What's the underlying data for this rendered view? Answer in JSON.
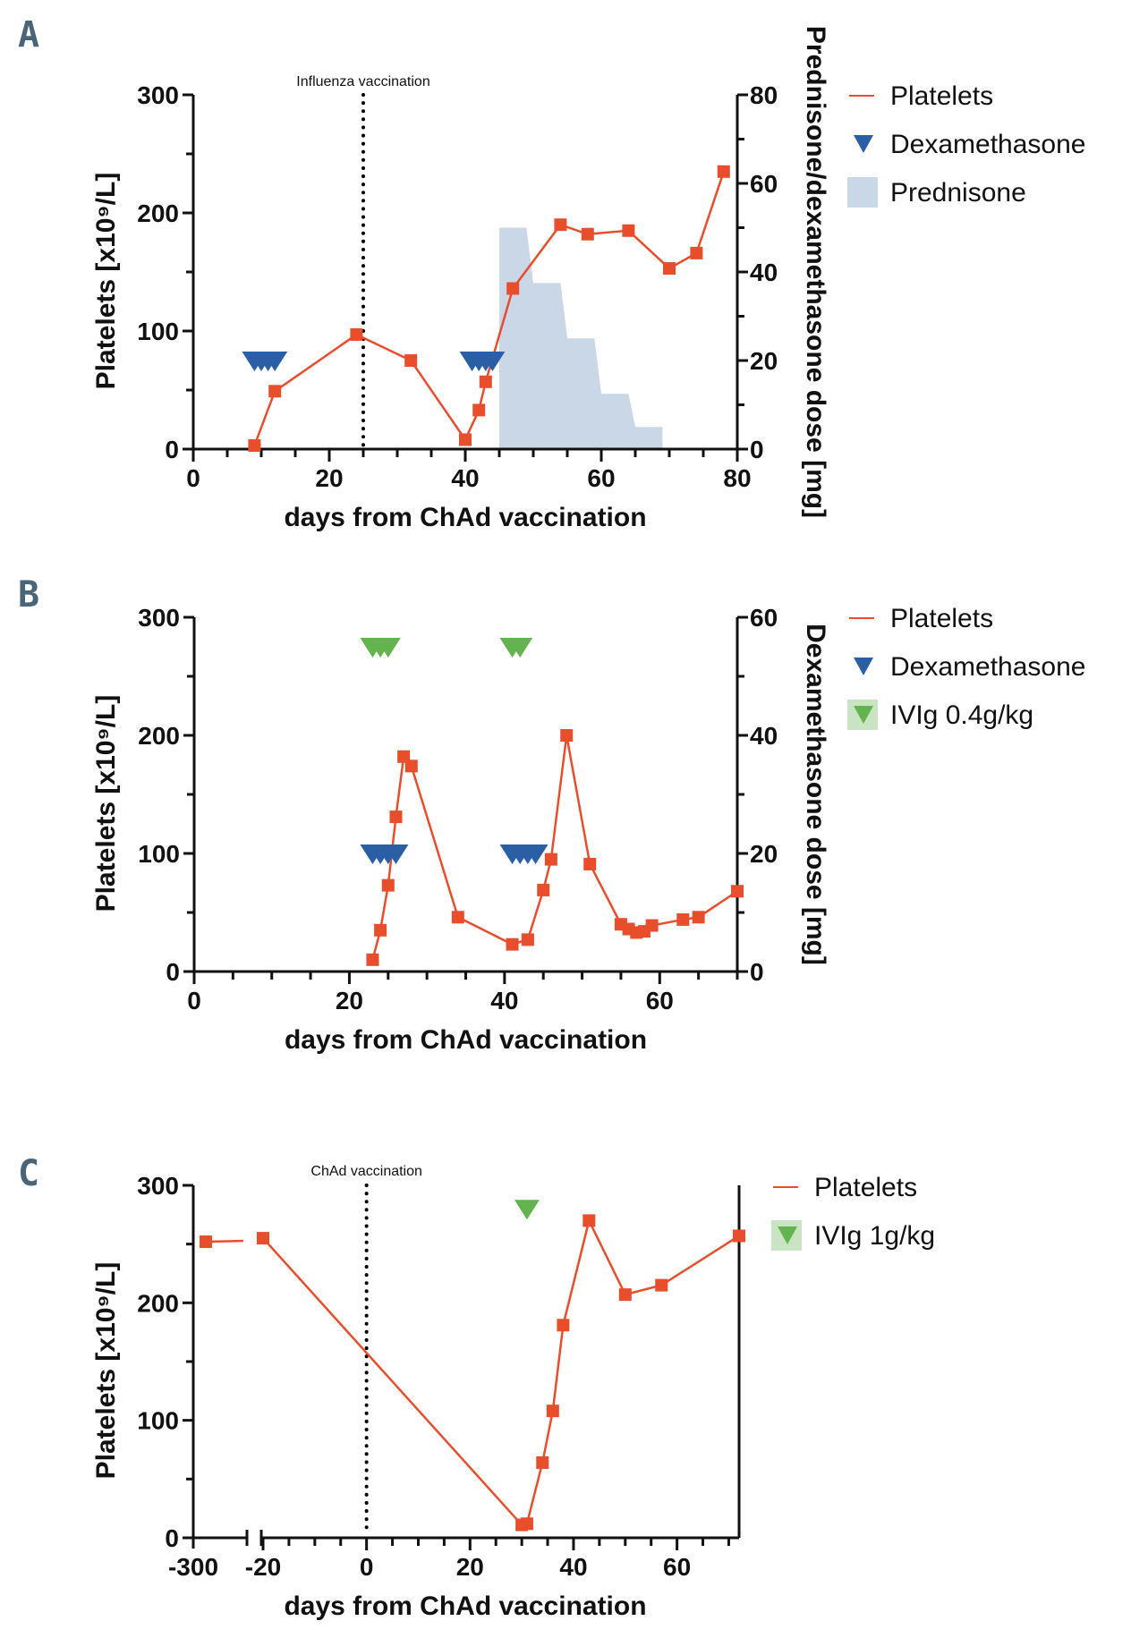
{
  "colors": {
    "platelets": "#e84e2c",
    "dexamethasone": "#2a5fa5",
    "ivig": "#63b34f",
    "ivig_legend_bg": "#c9e4c2",
    "prednisone": "#c9d7e6",
    "axis": "#111111",
    "panel_letter": "#4a6478"
  },
  "chart_data": [
    {
      "id": "A",
      "type": "line",
      "panel_label": "A",
      "title": "",
      "xlabel": "days from ChAd vaccination",
      "ylabel": "Platelets [x10⁹/L]",
      "y2label": "Prednisone/dexamethasone dose [mg]",
      "xlim": [
        0,
        80
      ],
      "ylim": [
        0,
        300
      ],
      "y2lim": [
        0,
        80
      ],
      "xticks": [
        0,
        20,
        40,
        60,
        80
      ],
      "yticks": [
        0,
        100,
        200,
        300
      ],
      "y2ticks": [
        0,
        20,
        40,
        60,
        80
      ],
      "grid": false,
      "legend_position": "right",
      "legend": [
        "Platelets",
        "Dexamethasone",
        "Prednisone"
      ],
      "annotations": [
        {
          "text": "Influenza vaccination",
          "x": 25,
          "style": "dotted-vertical-line"
        }
      ],
      "series": [
        {
          "name": "Platelets",
          "kind": "line-square",
          "axis": "left",
          "x": [
            9,
            12,
            24,
            32,
            40,
            42,
            43,
            47,
            54,
            58,
            64,
            70,
            74,
            78
          ],
          "y": [
            3,
            49,
            97,
            75,
            8,
            33,
            57,
            136,
            190,
            182,
            185,
            153,
            166,
            235
          ]
        },
        {
          "name": "Dexamethasone",
          "kind": "triangle-down",
          "axis": "right",
          "x": [
            9,
            10,
            11,
            12,
            41,
            42,
            43,
            44
          ],
          "y": [
            20,
            20,
            20,
            20,
            20,
            20,
            20,
            20
          ]
        },
        {
          "name": "Prednisone",
          "kind": "step-area",
          "axis": "right",
          "x": [
            45,
            49,
            50,
            54,
            55,
            59,
            60,
            64,
            65,
            69
          ],
          "y": [
            50,
            50,
            37.5,
            37.5,
            25,
            25,
            12.5,
            12.5,
            5,
            5
          ]
        }
      ]
    },
    {
      "id": "B",
      "type": "line",
      "panel_label": "B",
      "title": "",
      "xlabel": "days from ChAd vaccination",
      "ylabel": "Platelets [x10⁹/L]",
      "y2label": "Dexamethasone dose [mg]",
      "xlim": [
        0,
        70
      ],
      "ylim": [
        0,
        300
      ],
      "y2lim": [
        0,
        60
      ],
      "xticks": [
        0,
        20,
        40,
        60
      ],
      "yticks": [
        0,
        100,
        200,
        300
      ],
      "y2ticks": [
        0,
        20,
        40,
        60
      ],
      "grid": false,
      "legend_position": "right",
      "legend": [
        "Platelets",
        "Dexamethasone",
        "IVIg 0.4g/kg"
      ],
      "annotations": [],
      "series": [
        {
          "name": "Platelets",
          "kind": "line-square",
          "axis": "left",
          "x": [
            23,
            24,
            25,
            26,
            27,
            28,
            34,
            41,
            43,
            45,
            46,
            48,
            51,
            55,
            56,
            57,
            58,
            59,
            63,
            65,
            70
          ],
          "y": [
            10,
            35,
            73,
            131,
            182,
            174,
            46,
            23,
            27,
            69,
            95,
            200,
            91,
            40,
            36,
            33,
            34,
            39,
            44,
            46,
            68
          ]
        },
        {
          "name": "Dexamethasone",
          "kind": "triangle-down",
          "axis": "right",
          "x": [
            23,
            24,
            25,
            26,
            41,
            42,
            43,
            44
          ],
          "y": [
            20,
            20,
            20,
            20,
            20,
            20,
            20,
            20
          ]
        },
        {
          "name": "IVIg 0.4g/kg",
          "kind": "triangle-down",
          "axis": "left",
          "x": [
            23,
            24,
            25,
            41,
            42
          ],
          "y": [
            275,
            275,
            275,
            275,
            275
          ]
        }
      ]
    },
    {
      "id": "C",
      "type": "line",
      "panel_label": "C",
      "title": "",
      "xlabel": "days from ChAd vaccination",
      "ylabel": "Platelets [x10⁹/L]",
      "xlim": [
        -20,
        72
      ],
      "x_break": {
        "left_segment_label": "-300",
        "left_value": -300
      },
      "ylim": [
        0,
        300
      ],
      "xticks": [
        -20,
        0,
        20,
        40,
        60
      ],
      "yticks": [
        0,
        100,
        200,
        300
      ],
      "grid": false,
      "legend_position": "right",
      "legend": [
        "Platelets",
        "IVIg 1g/kg"
      ],
      "annotations": [
        {
          "text": "ChAd vaccination",
          "x": 0,
          "style": "dotted-vertical-line"
        }
      ],
      "series": [
        {
          "name": "Platelets",
          "kind": "line-square",
          "axis": "left",
          "x": [
            -300,
            -20,
            30,
            31,
            34,
            36,
            38,
            43,
            50,
            57,
            72
          ],
          "y": [
            252,
            255,
            11,
            12,
            64,
            108,
            181,
            270,
            207,
            215,
            257
          ]
        },
        {
          "name": "IVIg 1g/kg",
          "kind": "triangle-down",
          "axis": "left",
          "x": [
            31
          ],
          "y": [
            280
          ]
        }
      ]
    }
  ]
}
